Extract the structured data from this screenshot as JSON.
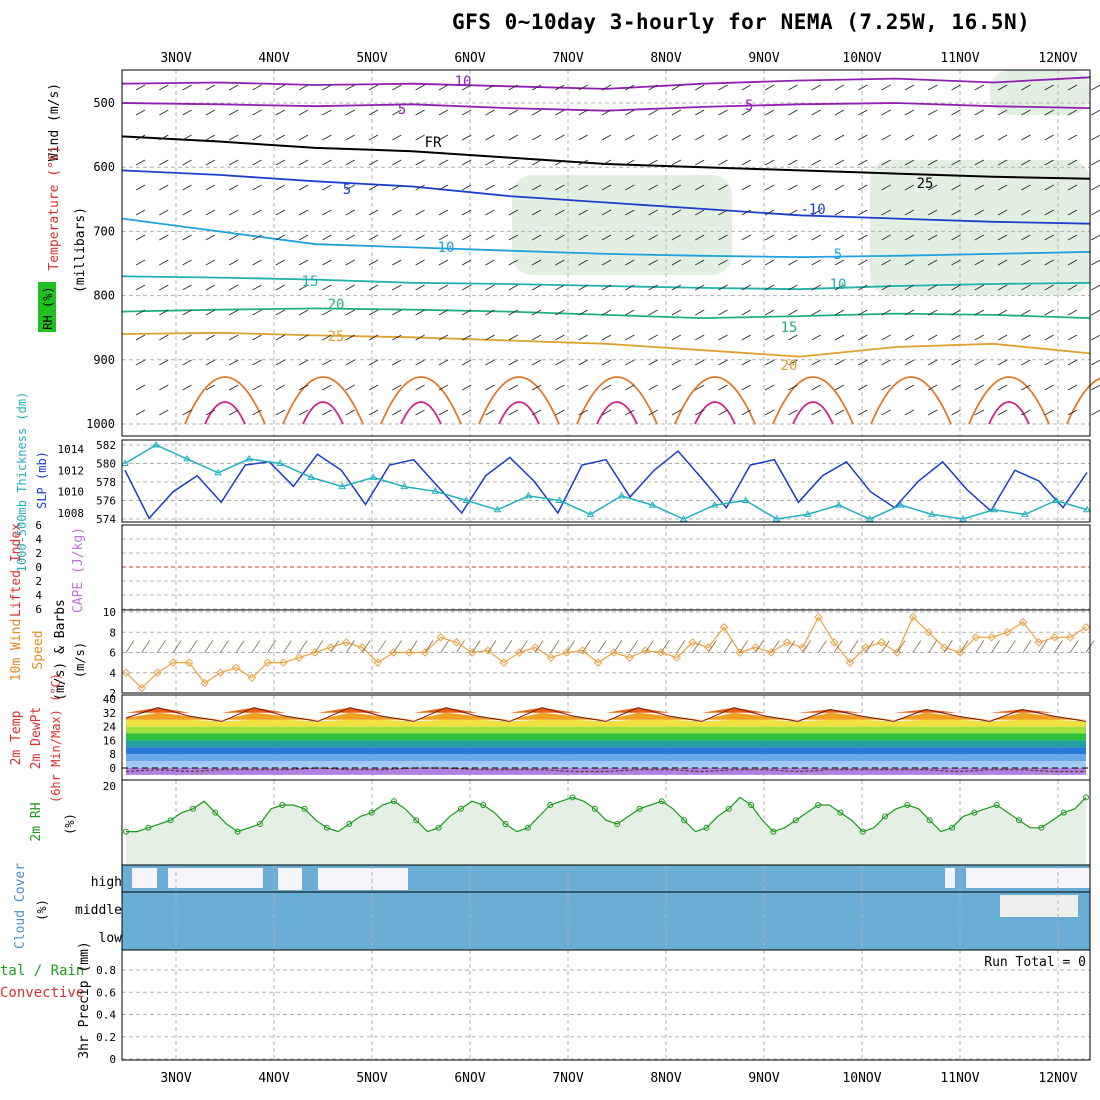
{
  "title": "GFS 0~10day 3-hourly for NEMA (7.25W, 16.5N)",
  "date_labels": [
    "3NOV",
    "4NOV",
    "5NOV",
    "6NOV",
    "7NOV",
    "8NOV",
    "9NOV",
    "10NOV",
    "11NOV",
    "12NOV"
  ],
  "colors": {
    "temp_lines": "#e08a20",
    "rh_line": "#1a9a1a",
    "slp_line": "#1a3acc",
    "thickness_line": "#20b0c0",
    "wind_line": "#f0a040",
    "cloud": "#6aaed6",
    "grid": "#b0b0b0"
  },
  "labels": {
    "wind_axis": "Wind (m/s)",
    "temp_axis": "Temperature (°C)",
    "rh_axis": "RH (%)",
    "millibars": "(millibars)",
    "thickness_axis": "1000-500mb Thickness (dm)",
    "slp_axis": "SLP (mb)",
    "lifted_axis": "Lifted Index",
    "cape_axis": "CAPE (J/kg)",
    "wind10_axis": "10m Wind",
    "speed_axis": "Speed",
    "barbs_axis": "(m/s) & Barbs",
    "temp2m_a": "2m Temp",
    "temp2m_b": "2m DewPt",
    "temp2m_c": "(6hr Min/Max) (°C)",
    "rh2m_a": "2m RH",
    "rh2m_b": "(%)",
    "cloud_a": "Cloud Cover",
    "cloud_b": "(%)",
    "cloud_high": "high",
    "cloud_middle": "middle",
    "cloud_low": "low",
    "precip_a": "tal / Rain",
    "precip_b": "Convective",
    "precip_c": "3hr Precip (mm)",
    "run_total": "Run Total = 0"
  },
  "chart_data": [
    {
      "type": "line",
      "name": "upper-air cross section",
      "ylabel": "(millibars)",
      "yticks": [
        500,
        600,
        700,
        800,
        900,
        1000
      ],
      "isotherm_labels": [
        "10",
        "5",
        "FR",
        "5",
        "10",
        "15",
        "20",
        "25",
        "-5",
        "-10",
        "5",
        "10",
        "15",
        "20",
        "25",
        "FR"
      ],
      "isotherms": [
        {
          "label": "-10",
          "level": [
            470,
            468,
            472,
            470,
            474,
            478,
            470,
            465,
            462,
            468,
            460
          ]
        },
        {
          "label": "-5",
          "level": [
            500,
            502,
            505,
            502,
            508,
            512,
            506,
            502,
            500,
            505,
            508
          ]
        },
        {
          "label": "FR",
          "level": [
            552,
            560,
            570,
            575,
            585,
            595,
            600,
            605,
            610,
            615,
            618
          ]
        },
        {
          "label": "5",
          "level": [
            605,
            612,
            622,
            630,
            645,
            655,
            665,
            675,
            680,
            685,
            688
          ]
        },
        {
          "label": "10",
          "level": [
            680,
            700,
            720,
            725,
            730,
            735,
            738,
            740,
            738,
            735,
            732
          ]
        },
        {
          "label": "15",
          "level": [
            770,
            772,
            775,
            780,
            782,
            785,
            788,
            790,
            785,
            782,
            780
          ]
        },
        {
          "label": "20",
          "level": [
            825,
            822,
            820,
            822,
            825,
            830,
            835,
            832,
            828,
            830,
            835
          ]
        },
        {
          "label": "25",
          "level": [
            860,
            858,
            862,
            865,
            870,
            875,
            885,
            895,
            880,
            875,
            890
          ]
        }
      ]
    },
    {
      "type": "line",
      "name": "slp-thickness",
      "series": [
        {
          "name": "SLP (mb)",
          "axis": "right",
          "values": [
            1012,
            1007.5,
            1010,
            1011.5,
            1009,
            1012.5,
            1012.8,
            1010.5,
            1013.5,
            1012,
            1008.8,
            1012.5,
            1013,
            1010.5,
            1008,
            1011.5,
            1013.2,
            1011,
            1008,
            1012.5,
            1013,
            1009.5,
            1012,
            1013.8,
            1011.2,
            1008.5,
            1012.5,
            1013,
            1009,
            1011.5,
            1012.8,
            1010,
            1008.5,
            1011,
            1012.8,
            1010.2,
            1008.2,
            1012,
            1011,
            1008.5,
            1011.8
          ]
        },
        {
          "name": "1000-500mb Thickness (dm)",
          "axis": "left",
          "values": [
            580,
            582,
            580.5,
            579,
            580.5,
            580,
            578.5,
            577.5,
            578.5,
            577.5,
            577,
            576,
            575,
            576.5,
            576,
            574.5,
            576.5,
            575.5,
            574,
            575.5,
            576,
            574,
            574.5,
            575.5,
            574,
            575.5,
            574.5,
            574,
            575,
            574.5,
            576,
            575
          ]
        }
      ],
      "yticks_left": [
        574,
        576,
        578,
        580,
        582
      ],
      "yticks_right": [
        1008,
        1010,
        1012,
        1014
      ]
    },
    {
      "type": "line",
      "name": "lifted-index-cape",
      "yticks": [
        -6,
        -4,
        -2,
        0,
        2,
        4,
        6
      ],
      "zero_line": 0,
      "series": []
    },
    {
      "type": "line",
      "name": "10m wind speed",
      "ylabel": "(m/s)",
      "yticks": [
        2,
        4,
        6,
        8,
        10
      ],
      "ylim": [
        2,
        10
      ],
      "series": [
        {
          "name": "Speed",
          "values": [
            4,
            2.5,
            4,
            5,
            5,
            3,
            4,
            4.5,
            3.5,
            5,
            5,
            5.5,
            6,
            6.5,
            7,
            6.5,
            5,
            6,
            6,
            6,
            7.5,
            7,
            6,
            6.2,
            5,
            6,
            6.5,
            5.5,
            6,
            6.2,
            5,
            6,
            5.5,
            6.2,
            6,
            5.5,
            7,
            6.5,
            8.5,
            6,
            6.5,
            6,
            7,
            6.5,
            9.5,
            7,
            5,
            6.5,
            7,
            6,
            9.5,
            8,
            6.5,
            6,
            7.5,
            7.5,
            8,
            9,
            7,
            7.5,
            7.5,
            8.5
          ]
        }
      ]
    },
    {
      "type": "area",
      "name": "2m temperature",
      "ylabel": "(°C)",
      "yticks": [
        0,
        8,
        16,
        24,
        32,
        40
      ],
      "series": [
        {
          "name": "2m Temp",
          "values": [
            29,
            35,
            30,
            27,
            35,
            30,
            27,
            35,
            30,
            27,
            35,
            30,
            27,
            35,
            30,
            27,
            35,
            30,
            27,
            35,
            30,
            27,
            34,
            30,
            27,
            34,
            30,
            27,
            34,
            30,
            27
          ]
        },
        {
          "name": "2m DewPt",
          "values": [
            -2,
            -1,
            -2,
            -1,
            -1,
            -1,
            0,
            -1,
            -1,
            0,
            0,
            -1,
            -1,
            -1,
            -2,
            -2,
            -1,
            -1,
            -2,
            -1,
            -1,
            -2,
            -1,
            -1,
            -1,
            -1,
            -2,
            -1,
            -1,
            -2,
            -2
          ]
        }
      ]
    },
    {
      "type": "line",
      "name": "2m RH",
      "yticks": [
        20
      ],
      "ylim": [
        0,
        22
      ],
      "series": [
        {
          "name": "2m RH",
          "values": [
            8,
            8,
            9,
            10,
            11,
            13,
            14,
            16,
            13,
            10,
            8,
            9,
            10,
            14,
            15,
            15,
            14,
            11,
            9,
            8,
            10,
            12,
            13,
            15,
            16,
            14,
            11,
            8,
            9,
            12,
            14,
            16,
            15,
            13,
            10,
            8,
            9,
            12,
            15,
            16,
            17,
            16,
            14,
            11,
            10,
            12,
            14,
            15,
            16,
            14,
            11,
            8,
            9,
            12,
            14,
            17,
            15,
            11,
            8,
            9,
            11,
            13,
            15,
            15,
            13,
            11,
            8,
            9,
            12,
            14,
            15,
            14,
            11,
            8,
            9,
            12,
            13,
            14,
            15,
            13,
            11,
            9,
            9,
            11,
            13,
            14,
            17
          ]
        }
      ]
    },
    {
      "type": "area",
      "name": "cloud cover",
      "categories": [
        "high",
        "middle",
        "low"
      ],
      "ylabel": "(%)"
    },
    {
      "type": "bar",
      "name": "3hr precip",
      "ylabel": "3hr Precip (mm)",
      "yticks": [
        0,
        0.2,
        0.4,
        0.6,
        0.8
      ],
      "ylim": [
        0,
        1
      ],
      "values": []
    }
  ]
}
